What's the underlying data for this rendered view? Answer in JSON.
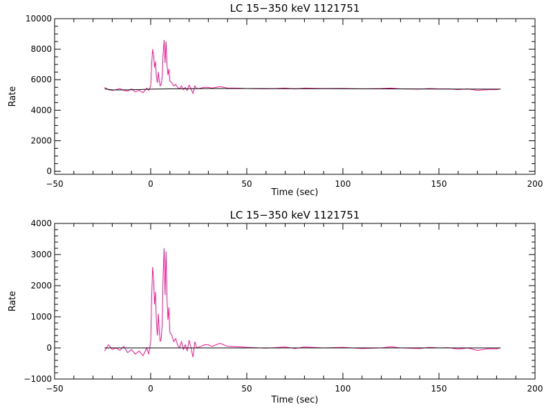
{
  "chart_data": [
    {
      "type": "line",
      "title": "LC 15−350 keV  1121751",
      "xlabel": "Time (sec)",
      "ylabel": "Rate",
      "xlim": [
        -50,
        200
      ],
      "ylim": [
        -200,
        10000
      ],
      "xticks": [
        -50,
        0,
        50,
        100,
        150,
        200
      ],
      "xtick_labels": [
        "−50",
        "0",
        "50",
        "100",
        "150",
        "200"
      ],
      "xminor_step": 10,
      "yticks": [
        0,
        2000,
        4000,
        6000,
        8000,
        10000
      ],
      "ytick_labels": [
        "0",
        "2000",
        "4000",
        "6000",
        "8000",
        "10000"
      ],
      "yminor_step": 500,
      "grid": false,
      "series": [
        {
          "color": "#ff1493",
          "x": [
            -24,
            -22,
            -20,
            -18,
            -16,
            -14,
            -12,
            -10,
            -8,
            -6,
            -4,
            -2,
            -1,
            0,
            0.5,
            1,
            1.5,
            2,
            2.5,
            3,
            3.5,
            4,
            4.5,
            5,
            5.5,
            6,
            6.5,
            7,
            7.5,
            8,
            8.5,
            9,
            9.5,
            10,
            11,
            12,
            13,
            14,
            15,
            16,
            17,
            18,
            19,
            20,
            21,
            22,
            23,
            24,
            26,
            28,
            30,
            32,
            34,
            36,
            38,
            40,
            45,
            50,
            60,
            70,
            75,
            80,
            90,
            100,
            110,
            120,
            125,
            130,
            140,
            145,
            150,
            155,
            160,
            165,
            170,
            175,
            180,
            182
          ],
          "y": [
            5500,
            5350,
            5300,
            5350,
            5420,
            5300,
            5250,
            5400,
            5200,
            5300,
            5150,
            5450,
            5300,
            5600,
            7000,
            8000,
            7600,
            6800,
            7200,
            6200,
            5800,
            6500,
            5900,
            5600,
            5700,
            6200,
            7800,
            8600,
            7100,
            8500,
            7000,
            6300,
            6700,
            5900,
            5800,
            5600,
            5700,
            5500,
            5400,
            5600,
            5350,
            5500,
            5300,
            5650,
            5400,
            5100,
            5600,
            5400,
            5450,
            5500,
            5500,
            5450,
            5500,
            5550,
            5500,
            5450,
            5450,
            5420,
            5400,
            5450,
            5400,
            5450,
            5420,
            5430,
            5400,
            5420,
            5450,
            5400,
            5380,
            5420,
            5400,
            5400,
            5350,
            5400,
            5300,
            5350,
            5350,
            5400
          ]
        },
        {
          "color": "#000000",
          "x": [
            -24,
            -20,
            -15,
            -10,
            -5,
            0,
            10,
            20,
            30,
            40,
            50,
            75,
            100,
            125,
            150,
            175,
            182
          ],
          "y": [
            5400,
            5330,
            5330,
            5340,
            5360,
            5380,
            5400,
            5410,
            5420,
            5420,
            5420,
            5410,
            5410,
            5400,
            5390,
            5380,
            5380
          ]
        }
      ]
    },
    {
      "type": "line",
      "title": "LC 15−350 keV  1121751",
      "xlabel": "Time (sec)",
      "ylabel": "Rate",
      "xlim": [
        -50,
        200
      ],
      "ylim": [
        -1000,
        4000
      ],
      "xticks": [
        -50,
        0,
        50,
        100,
        150,
        200
      ],
      "xtick_labels": [
        "−50",
        "0",
        "50",
        "100",
        "150",
        "200"
      ],
      "xminor_step": 10,
      "yticks": [
        -1000,
        0,
        1000,
        2000,
        3000,
        4000
      ],
      "ytick_labels": [
        "−1000",
        "0",
        "1000",
        "2000",
        "3000",
        "4000"
      ],
      "yminor_step": 200,
      "grid": false,
      "series": [
        {
          "color": "#ff1493",
          "x": [
            -24,
            -22,
            -20,
            -18,
            -16,
            -14,
            -12,
            -10,
            -8,
            -6,
            -4,
            -2,
            -1,
            0,
            0.5,
            1,
            1.5,
            2,
            2.5,
            3,
            3.5,
            4,
            4.5,
            5,
            5.5,
            6,
            6.5,
            7,
            7.5,
            8,
            8.5,
            9,
            9.5,
            10,
            11,
            12,
            13,
            14,
            15,
            16,
            17,
            18,
            19,
            20,
            21,
            22,
            23,
            24,
            26,
            28,
            30,
            32,
            34,
            36,
            38,
            40,
            45,
            50,
            60,
            70,
            75,
            80,
            90,
            100,
            110,
            120,
            125,
            130,
            140,
            145,
            150,
            155,
            160,
            165,
            170,
            175,
            180,
            182
          ],
          "y": [
            -100,
            100,
            -50,
            0,
            -80,
            50,
            -150,
            -50,
            -200,
            -100,
            -250,
            0,
            -200,
            200,
            1600,
            2600,
            2200,
            1400,
            1800,
            800,
            400,
            1100,
            500,
            200,
            300,
            800,
            2400,
            3200,
            1700,
            3100,
            1600,
            900,
            1300,
            500,
            400,
            200,
            300,
            100,
            0,
            200,
            -50,
            100,
            -100,
            250,
            0,
            -300,
            200,
            0,
            50,
            100,
            100,
            50,
            100,
            150,
            100,
            50,
            40,
            20,
            -10,
            30,
            -20,
            30,
            0,
            20,
            -20,
            0,
            40,
            0,
            -20,
            20,
            0,
            10,
            -40,
            0,
            -80,
            -30,
            -30,
            10
          ]
        },
        {
          "color": "#000000",
          "x": [
            -24,
            182
          ],
          "y": [
            0,
            0
          ]
        }
      ]
    }
  ]
}
